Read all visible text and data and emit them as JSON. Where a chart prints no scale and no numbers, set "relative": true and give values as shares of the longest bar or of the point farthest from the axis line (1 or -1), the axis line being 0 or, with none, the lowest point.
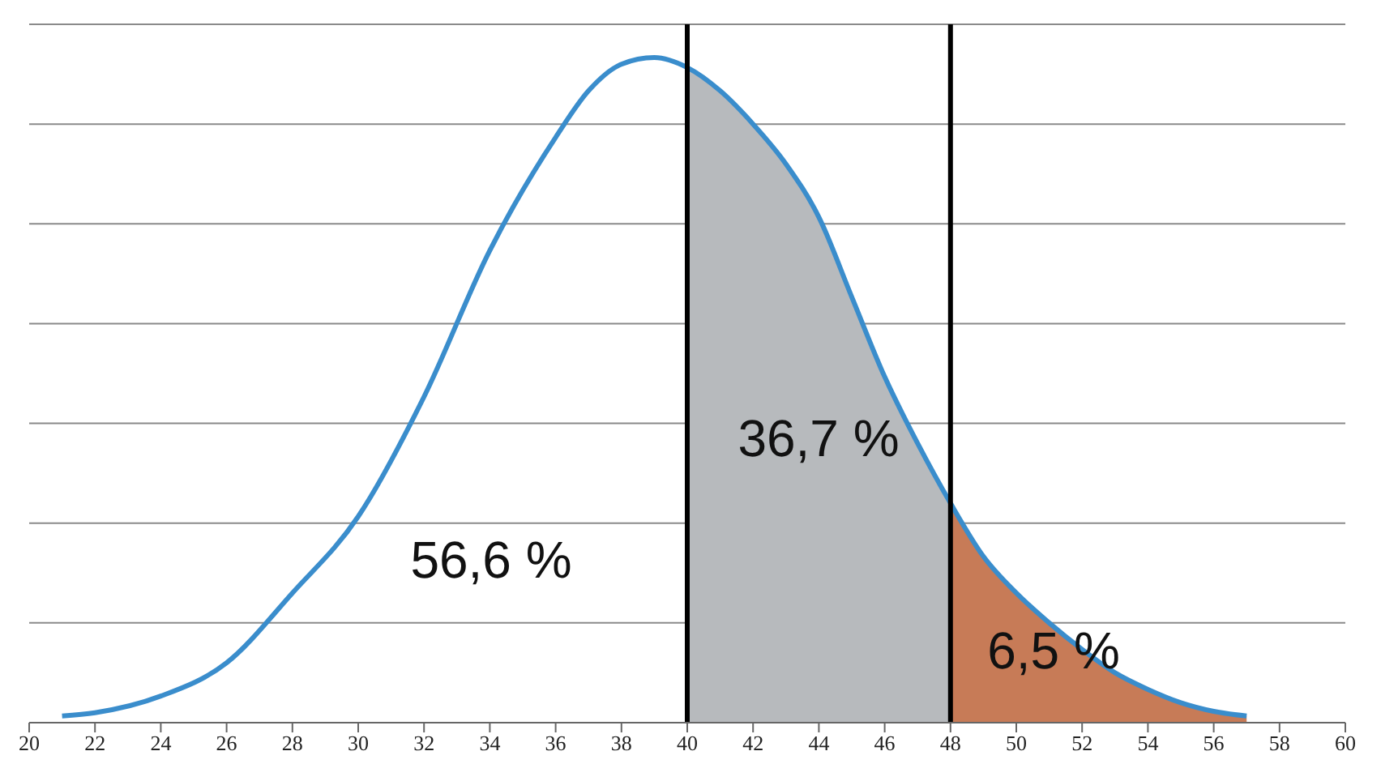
{
  "chart_data": {
    "type": "line",
    "relative": true,
    "xlim": [
      20,
      60
    ],
    "xticks": [
      20,
      22,
      24,
      26,
      28,
      30,
      32,
      34,
      36,
      38,
      40,
      42,
      44,
      46,
      48,
      50,
      52,
      54,
      56,
      58,
      60
    ],
    "tick_labels": "x",
    "grid": "y",
    "marker": "none",
    "line_style": "solid",
    "series": [
      {
        "type": "area",
        "color": "#b7babd",
        "x": [
          40,
          41,
          42,
          43,
          44,
          45,
          46,
          47,
          48
        ],
        "values": [
          0.985,
          0.95,
          0.9,
          0.84,
          0.76,
          0.64,
          0.52,
          0.42,
          0.33
        ]
      },
      {
        "type": "area",
        "color": "#c77b57",
        "x": [
          48,
          49,
          50,
          51,
          52,
          53,
          54,
          55,
          56,
          57
        ],
        "values": [
          0.33,
          0.25,
          0.195,
          0.15,
          0.11,
          0.075,
          0.05,
          0.03,
          0.017,
          0.01
        ]
      },
      {
        "color": "#3a8dcc",
        "x": [
          21,
          22,
          24,
          26,
          28,
          30,
          32,
          34,
          36,
          37,
          38,
          39,
          40,
          41,
          42,
          43,
          44,
          45,
          46,
          47,
          48,
          49,
          50,
          51,
          52,
          53,
          54,
          55,
          56,
          57
        ],
        "values": [
          0.01,
          0.015,
          0.04,
          0.09,
          0.195,
          0.31,
          0.49,
          0.71,
          0.88,
          0.95,
          0.99,
          1,
          0.985,
          0.95,
          0.9,
          0.84,
          0.76,
          0.64,
          0.52,
          0.42,
          0.33,
          0.25,
          0.195,
          0.15,
          0.11,
          0.075,
          0.05,
          0.03,
          0.017,
          0.01
        ]
      }
    ],
    "ref_lines": [
      {
        "axis": "x",
        "value": 40,
        "color": "#000000"
      },
      {
        "axis": "x",
        "value": 48,
        "color": "#000000"
      }
    ],
    "annotations": [
      "56,6 %",
      "36,7 %",
      "6,5 %"
    ]
  }
}
